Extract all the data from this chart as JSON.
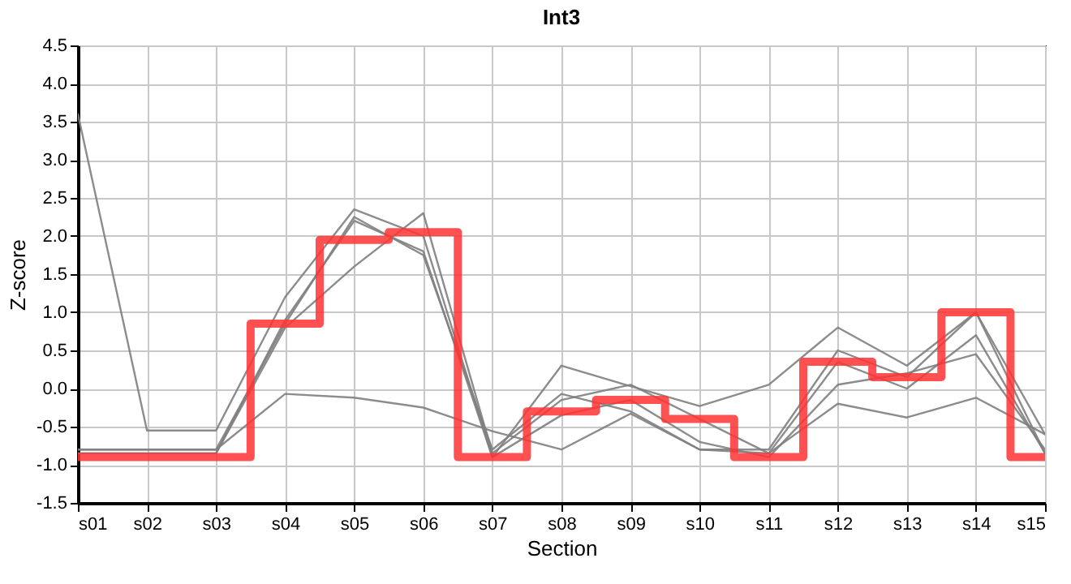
{
  "chart_data": {
    "type": "line",
    "title": "Int3",
    "xlabel": "Section",
    "ylabel": "Z-score",
    "categories": [
      "s01",
      "s02",
      "s03",
      "s04",
      "s05",
      "s06",
      "s07",
      "s08",
      "s09",
      "s10",
      "s11",
      "s12",
      "s13",
      "s14",
      "s15"
    ],
    "series": [
      {
        "color": "#808080",
        "values": [
          3.6,
          -0.55,
          -0.55,
          1.2,
          2.35,
          2.0,
          -0.9,
          0.3,
          0.03,
          -0.23,
          0.05,
          0.8,
          0.3,
          1.0,
          -0.6
        ]
      },
      {
        "color": "#808080",
        "values": [
          -0.8,
          -0.8,
          -0.8,
          -0.07,
          -0.12,
          -0.25,
          -0.56,
          -0.8,
          -0.33,
          -0.8,
          -0.85,
          -0.2,
          -0.38,
          -0.12,
          -0.6
        ]
      },
      {
        "color": "#808080",
        "values": [
          -0.8,
          -0.8,
          -0.8,
          0.85,
          2.25,
          1.75,
          -0.8,
          -0.07,
          -0.3,
          -0.8,
          -0.8,
          0.5,
          0.15,
          1.0,
          -0.85
        ]
      },
      {
        "color": "#808080",
        "values": [
          -0.85,
          -0.85,
          -0.85,
          0.8,
          1.6,
          2.3,
          -0.85,
          -0.15,
          0.05,
          -0.4,
          -0.85,
          0.35,
          0.0,
          0.7,
          -0.85
        ]
      },
      {
        "color": "#808080",
        "values": [
          -0.85,
          -0.85,
          -0.85,
          0.9,
          2.2,
          1.8,
          -0.9,
          -0.35,
          -0.15,
          -0.7,
          -0.9,
          0.05,
          0.2,
          0.45,
          -0.8
        ]
      },
      {
        "type": "step",
        "color": "#ff3333",
        "values": [
          -0.9,
          -0.9,
          -0.9,
          0.85,
          1.95,
          2.05,
          -0.9,
          -0.3,
          -0.15,
          -0.4,
          -0.9,
          0.35,
          0.15,
          1.0,
          -0.9
        ]
      }
    ],
    "ylim": [
      -1.5,
      4.5
    ],
    "yticks": [
      -1.5,
      {
        "value": -1,
        "label": "-1.0"
      },
      -0.5,
      {
        "value": 0,
        "label": "0.0"
      },
      0.5,
      {
        "value": 1,
        "label": "1.0"
      },
      1.5,
      {
        "value": 2,
        "label": "2.0"
      },
      2.5,
      {
        "value": 3,
        "label": "3.0"
      },
      3.5,
      {
        "value": 4,
        "label": "4.0"
      },
      4.5
    ],
    "grid": true,
    "marker": "none",
    "line_style": "solid"
  }
}
